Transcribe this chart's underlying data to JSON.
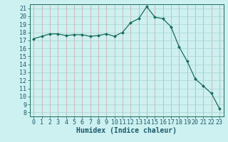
{
  "x": [
    0,
    1,
    2,
    3,
    4,
    5,
    6,
    7,
    8,
    9,
    10,
    11,
    12,
    13,
    14,
    15,
    16,
    17,
    18,
    19,
    20,
    21,
    22,
    23
  ],
  "y": [
    17.2,
    17.5,
    17.8,
    17.8,
    17.6,
    17.7,
    17.7,
    17.5,
    17.6,
    17.8,
    17.5,
    18.0,
    19.2,
    19.7,
    21.2,
    19.9,
    19.7,
    18.7,
    16.2,
    14.4,
    12.2,
    11.3,
    10.4,
    8.5
  ],
  "line_color": "#1a6b5a",
  "marker": "D",
  "marker_size": 2.0,
  "bg_color": "#cdf0f0",
  "xlabel": "Humidex (Indice chaleur)",
  "xlim": [
    -0.5,
    23.5
  ],
  "ylim": [
    7.5,
    21.5
  ],
  "yticks": [
    8,
    9,
    10,
    11,
    12,
    13,
    14,
    15,
    16,
    17,
    18,
    19,
    20,
    21
  ],
  "xticks": [
    0,
    1,
    2,
    3,
    4,
    5,
    6,
    7,
    8,
    9,
    10,
    11,
    12,
    13,
    14,
    15,
    16,
    17,
    18,
    19,
    20,
    21,
    22,
    23
  ],
  "font_size": 6.0,
  "xlabel_fontsize": 7.0,
  "label_color": "#1a5a6a",
  "grid_color_vert": "#d4a0a0",
  "grid_color_horiz": "#a8d4d4"
}
